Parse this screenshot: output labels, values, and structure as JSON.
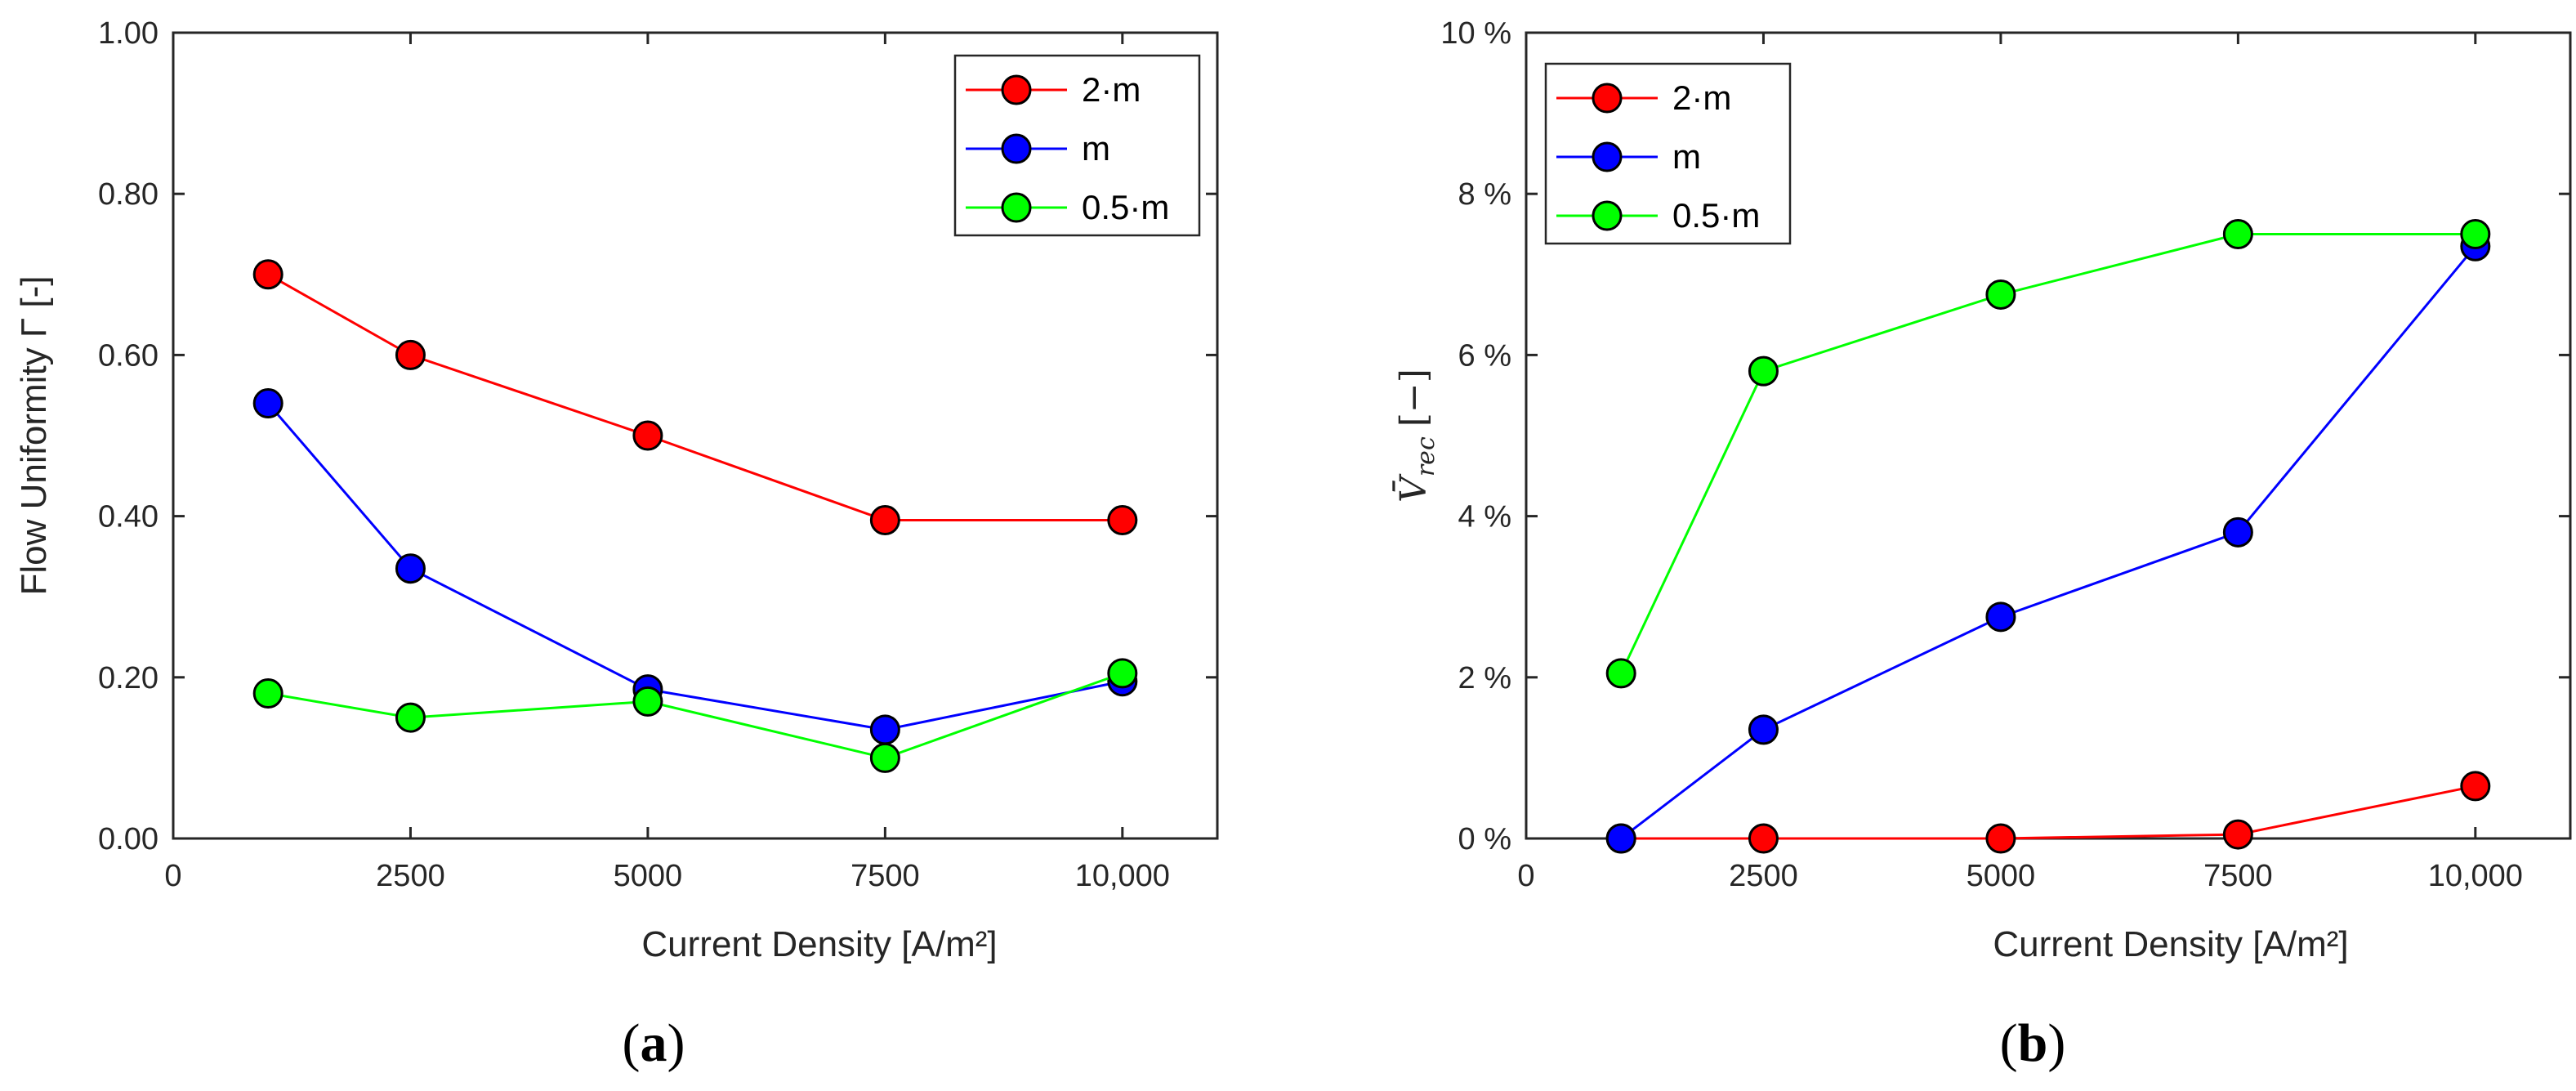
{
  "chart_data": [
    {
      "type": "line",
      "panel_label": "(a)",
      "panel_label_parts": [
        "(",
        "a",
        ")"
      ],
      "title": "",
      "xlabel": "Current Density [A/m²]",
      "ylabel": "Flow Uniformity Γ [-]",
      "xlim": [
        0,
        11000
      ],
      "ylim": [
        0,
        1
      ],
      "x_ticks": [
        0,
        2500,
        5000,
        7500,
        10000
      ],
      "x_tick_labels": [
        "0",
        "2500",
        "5000",
        "7500",
        "10,000"
      ],
      "y_ticks": [
        0,
        0.2,
        0.4,
        0.6,
        0.8,
        1.0
      ],
      "y_tick_labels": [
        "0.00",
        "0.20",
        "0.40",
        "0.60",
        "0.80",
        "1.00"
      ],
      "legend_position": "top-right",
      "x": [
        1000,
        2500,
        5000,
        7500,
        10000
      ],
      "series": [
        {
          "name": "2·m",
          "color": "#ff0000",
          "values": [
            0.7,
            0.6,
            0.5,
            0.395,
            0.395
          ]
        },
        {
          "name": "m",
          "color": "#0000ff",
          "values": [
            0.54,
            0.335,
            0.185,
            0.135,
            0.195
          ]
        },
        {
          "name": "0.5·m",
          "color": "#00ff00",
          "values": [
            0.18,
            0.15,
            0.17,
            0.1,
            0.205
          ]
        }
      ]
    },
    {
      "type": "line",
      "panel_label": "(b)",
      "panel_label_parts": [
        "(",
        "b",
        ")"
      ],
      "title": "",
      "xlabel": "Current Density [A/m²]",
      "ylabel": "V̄rec [−]",
      "ylabel_main": "V̄",
      "ylabel_sub": "rec",
      "ylabel_rest": "[−]",
      "xlim": [
        0,
        11000
      ],
      "ylim": [
        0,
        10
      ],
      "x_ticks": [
        0,
        2500,
        5000,
        7500,
        10000
      ],
      "x_tick_labels": [
        "0",
        "2500",
        "5000",
        "7500",
        "10,000"
      ],
      "y_ticks": [
        0,
        2,
        4,
        6,
        8,
        10
      ],
      "y_tick_labels": [
        "0 %",
        "2 %",
        "4 %",
        "6 %",
        "8 %",
        "10 %"
      ],
      "legend_position": "top-left",
      "x": [
        1000,
        2500,
        5000,
        7500,
        10000
      ],
      "series": [
        {
          "name": "2·m",
          "color": "#ff0000",
          "values": [
            0.0,
            0.0,
            0.0,
            0.05,
            0.65
          ]
        },
        {
          "name": "m",
          "color": "#0000ff",
          "values": [
            0.0,
            1.35,
            2.75,
            3.8,
            7.35
          ]
        },
        {
          "name": "0.5·m",
          "color": "#00ff00",
          "values": [
            2.05,
            5.8,
            6.75,
            7.5,
            7.5
          ]
        }
      ]
    }
  ]
}
